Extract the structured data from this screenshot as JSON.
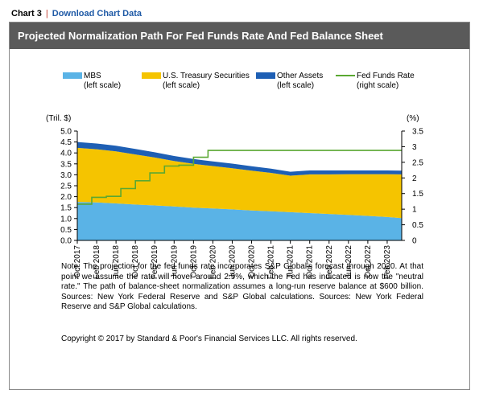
{
  "header": {
    "chart_number": "Chart 3",
    "separator": "|",
    "download_link": "Download Chart Data"
  },
  "chart_title": "Projected Normalization Path For Fed Funds Rate And Fed Balance Sheet",
  "chart_data": {
    "type": "area",
    "title": "Projected Normalization Path For Fed Funds Rate And Fed Balance Sheet",
    "ylabel": "(Tril. $)",
    "y2label": "(%)",
    "ylim": [
      0,
      5
    ],
    "y2lim": [
      0,
      3.5
    ],
    "y_ticks": [
      "0.0",
      "0.5",
      "1.0",
      "1.5",
      "2.0",
      "2.5",
      "3.0",
      "3.5",
      "4.0",
      "4.5",
      "5.0"
    ],
    "y2_ticks": [
      "0",
      "0.5",
      "1",
      "1.5",
      "2",
      "2.5",
      "3",
      "3.5"
    ],
    "x_ticks": [
      "Oct 2017",
      "Feb 2018",
      "Jun 2018",
      "Oct 2018",
      "Feb 2019",
      "Jun 2019",
      "Oct 2019",
      "Feb 2020",
      "Jun 2020",
      "Oct 2020",
      "Feb 2021",
      "Jun 2021",
      "Oct 2021",
      "Feb 2022",
      "Jun 2022",
      "Oct 2022",
      "Feb 2023"
    ],
    "legend": [
      {
        "name": "MBS",
        "sub": "(left scale)",
        "color": "#5ab3e6"
      },
      {
        "name": "U.S. Treasury Securities",
        "sub": "(left scale)",
        "color": "#f5c400"
      },
      {
        "name": "Other Assets",
        "sub": "(left scale)",
        "color": "#1e5fb4"
      },
      {
        "name": "Fed Funds Rate",
        "sub": "(right scale)",
        "color": "#5aa832"
      }
    ],
    "legend_position": "top",
    "grid": false,
    "series": [
      {
        "name": "MBS",
        "axis": "left",
        "stack": "balance",
        "x": [
          0,
          4,
          8,
          12,
          16,
          20,
          24,
          28,
          32,
          36,
          40,
          44,
          48,
          52,
          56,
          60,
          64,
          67
        ],
        "values": [
          1.76,
          1.74,
          1.69,
          1.64,
          1.6,
          1.55,
          1.5,
          1.46,
          1.42,
          1.37,
          1.33,
          1.29,
          1.25,
          1.21,
          1.17,
          1.12,
          1.07,
          1.02
        ]
      },
      {
        "name": "U.S. Treasury Securities",
        "axis": "left",
        "stack": "balance",
        "x": [
          0,
          4,
          8,
          12,
          16,
          20,
          24,
          28,
          32,
          36,
          40,
          44,
          48,
          52,
          56,
          60,
          64,
          67
        ],
        "values": [
          2.47,
          2.43,
          2.38,
          2.29,
          2.19,
          2.08,
          2.0,
          1.94,
          1.88,
          1.82,
          1.76,
          1.67,
          1.77,
          1.81,
          1.86,
          1.91,
          1.96,
          2.0
        ]
      },
      {
        "name": "Other Assets",
        "axis": "left",
        "stack": "balance",
        "x": [
          0,
          4,
          8,
          12,
          16,
          20,
          24,
          28,
          32,
          36,
          40,
          44,
          48,
          52,
          56,
          60,
          64,
          67
        ],
        "values": [
          0.27,
          0.26,
          0.26,
          0.25,
          0.24,
          0.23,
          0.22,
          0.21,
          0.21,
          0.2,
          0.19,
          0.18,
          0.18,
          0.18,
          0.17,
          0.17,
          0.17,
          0.17
        ]
      },
      {
        "name": "Fed Funds Rate",
        "axis": "right",
        "type": "step",
        "x": [
          0,
          3,
          6,
          9,
          12,
          15,
          18,
          21,
          24,
          27,
          67
        ],
        "values": [
          1.16,
          1.38,
          1.41,
          1.66,
          1.91,
          2.16,
          2.38,
          2.41,
          2.66,
          2.88,
          2.88
        ]
      }
    ]
  },
  "note": "Note: The projection for the fed funds rate incorporates S&P Global's forecast through 2020. At that point we assume the rate will hover around 2.9%, which the Fed has indicated is now the \"neutral rate.\" The path of balance-sheet normalization assumes a long-run reserve balance at $600 billion. Sources: New York Federal Reserve and S&P Global calculations. Sources: New York Federal Reserve and S&P Global calculations.",
  "copyright": "Copyright © 2017 by Standard & Poor's Financial Services LLC. All rights reserved."
}
